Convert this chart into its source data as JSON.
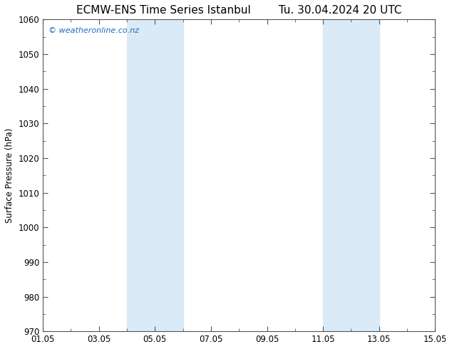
{
  "title_left": "ECMW-ENS Time Series Istanbul",
  "title_right": "Tu. 30.04.2024 20 UTC",
  "ylabel": "Surface Pressure (hPa)",
  "xlabel": "",
  "xlim": [
    0,
    14
  ],
  "ylim": [
    970,
    1060
  ],
  "yticks": [
    970,
    980,
    990,
    1000,
    1010,
    1020,
    1030,
    1040,
    1050,
    1060
  ],
  "xtick_labels": [
    "01.05",
    "03.05",
    "05.05",
    "07.05",
    "09.05",
    "11.05",
    "13.05",
    "15.05"
  ],
  "xtick_positions": [
    0,
    2,
    4,
    6,
    8,
    10,
    12,
    14
  ],
  "shaded_bands": [
    {
      "xmin": 3.0,
      "xmax": 5.0
    },
    {
      "xmin": 10.0,
      "xmax": 12.0
    }
  ],
  "shaded_color": "#daeaf6",
  "watermark_text": "© weatheronline.co.nz",
  "watermark_color": "#1a6bbf",
  "title_fontsize": 11,
  "axis_fontsize": 8.5,
  "tick_label_fontsize": 8.5,
  "background_color": "#ffffff",
  "plot_bg_color": "#ffffff",
  "tick_color": "#555555",
  "spine_color": "#555555"
}
